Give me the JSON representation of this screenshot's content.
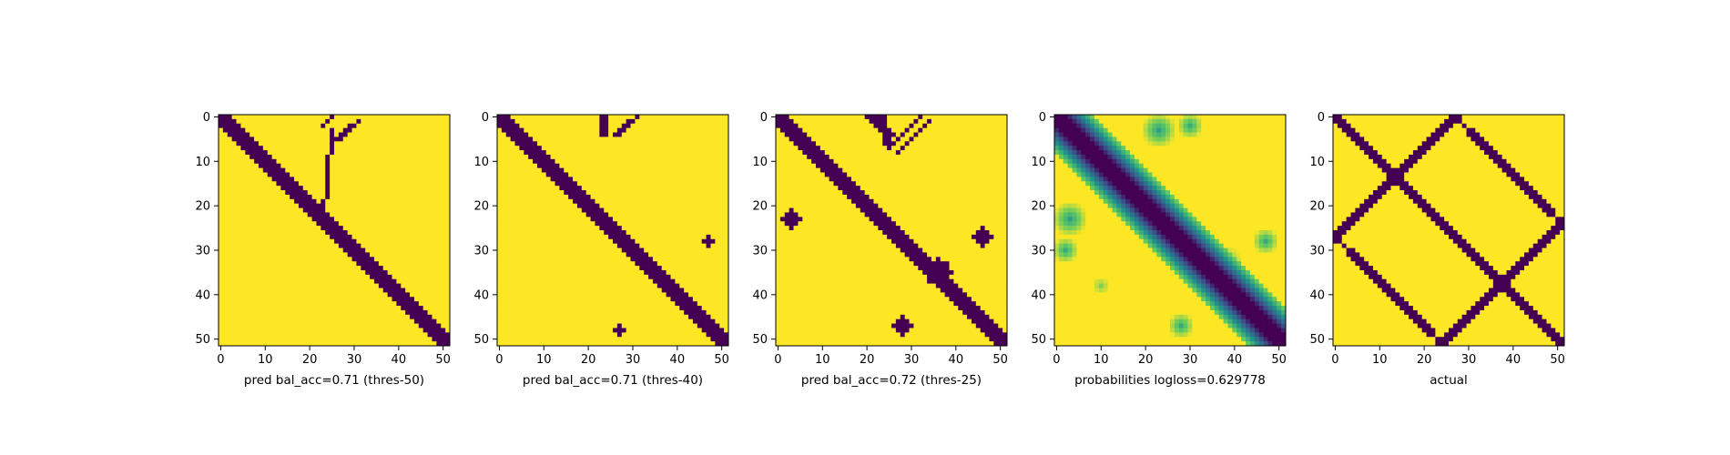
{
  "chart_data": [
    {
      "type": "heatmap",
      "title": "",
      "xlabel": "pred bal_acc=0.71 (thres-50)",
      "ylabel": "",
      "xlim": [
        0,
        52
      ],
      "ylim": [
        52,
        0
      ],
      "xticks": [
        0,
        10,
        20,
        30,
        40,
        50
      ],
      "yticks": [
        0,
        10,
        20,
        30,
        40,
        50
      ],
      "grid": false,
      "colormap": "viridis-binary",
      "background_value": 1,
      "description": "binary contact map; band along main diagonal (width ~3) plus small off-diagonal fragments",
      "bands": [
        {
          "from": [
            0,
            0
          ],
          "to": [
            51,
            51
          ],
          "width": 3
        },
        {
          "from": [
            23,
            2
          ],
          "to": [
            25,
            0
          ],
          "width": 1
        },
        {
          "from": [
            27,
            5
          ],
          "to": [
            31,
            1
          ],
          "width": 1
        },
        {
          "from": [
            23,
            24
          ],
          "to": [
            25,
            3
          ],
          "width": 1
        },
        {
          "from": [
            26,
            5
          ],
          "to": [
            31,
            1
          ],
          "width": 1
        }
      ],
      "blobs": []
    },
    {
      "type": "heatmap",
      "title": "",
      "xlabel": "pred bal_acc=0.71 (thres-40)",
      "ylabel": "",
      "xlim": [
        0,
        52
      ],
      "ylim": [
        52,
        0
      ],
      "xticks": [
        0,
        10,
        20,
        30,
        40,
        50
      ],
      "yticks": [
        0,
        10,
        20,
        30,
        40,
        50
      ],
      "grid": false,
      "colormap": "viridis-binary",
      "background_value": 1,
      "description": "binary contact map; diagonal band plus off-diagonal fragments",
      "bands": [
        {
          "from": [
            0,
            0
          ],
          "to": [
            51,
            51
          ],
          "width": 3
        },
        {
          "from": [
            23,
            0
          ],
          "to": [
            24,
            4
          ],
          "width": 1
        },
        {
          "from": [
            27,
            4
          ],
          "to": [
            31,
            0
          ],
          "width": 1
        },
        {
          "from": [
            23,
            4
          ],
          "to": [
            24,
            0
          ],
          "width": 1
        },
        {
          "from": [
            26,
            4
          ],
          "to": [
            31,
            0
          ],
          "width": 1
        }
      ],
      "blobs": [
        {
          "x": 27,
          "y": 48,
          "r": 1
        },
        {
          "x": 47,
          "y": 28,
          "r": 1
        }
      ]
    },
    {
      "type": "heatmap",
      "title": "",
      "xlabel": "pred bal_acc=0.72 (thres-25)",
      "ylabel": "",
      "xlim": [
        0,
        52
      ],
      "ylim": [
        52,
        0
      ],
      "xticks": [
        0,
        10,
        20,
        30,
        40,
        50
      ],
      "yticks": [
        0,
        10,
        20,
        30,
        40,
        50
      ],
      "grid": false,
      "colormap": "viridis-binary",
      "background_value": 1,
      "description": "binary contact map; wider diagonal band plus off-diagonal fragments",
      "bands": [
        {
          "from": [
            0,
            0
          ],
          "to": [
            51,
            51
          ],
          "width": 4
        },
        {
          "from": [
            23,
            0
          ],
          "to": [
            25,
            6
          ],
          "width": 2
        },
        {
          "from": [
            26,
            6
          ],
          "to": [
            32,
            0
          ],
          "width": 1
        },
        {
          "from": [
            21,
            0
          ],
          "to": [
            25,
            4
          ],
          "width": 2
        },
        {
          "from": [
            27,
            8
          ],
          "to": [
            34,
            1
          ],
          "width": 1
        }
      ],
      "blobs": [
        {
          "x": 28,
          "y": 47,
          "r": 2
        },
        {
          "x": 46,
          "y": 27,
          "r": 2
        },
        {
          "x": 36,
          "y": 35,
          "r": 3
        },
        {
          "x": 3,
          "y": 23,
          "r": 2
        }
      ]
    },
    {
      "type": "heatmap",
      "title": "",
      "xlabel": "probabilities logloss=0.629778",
      "ylabel": "",
      "xlim": [
        0,
        52
      ],
      "ylim": [
        52,
        0
      ],
      "xticks": [
        0,
        10,
        20,
        30,
        40,
        50
      ],
      "yticks": [
        0,
        10,
        20,
        30,
        40,
        50
      ],
      "grid": false,
      "colormap": "viridis",
      "background_value": 1,
      "description": "continuous probability map; dark diagonal band with blue-green halos and scattered green patches",
      "bands": [
        {
          "from": [
            0,
            0
          ],
          "to": [
            51,
            51
          ],
          "width": 3
        }
      ],
      "blobs": [
        {
          "x": 23,
          "y": 3,
          "r": 4,
          "v": 0.55
        },
        {
          "x": 3,
          "y": 23,
          "r": 4,
          "v": 0.55
        },
        {
          "x": 30,
          "y": 2,
          "r": 3,
          "v": 0.6
        },
        {
          "x": 2,
          "y": 30,
          "r": 3,
          "v": 0.6
        },
        {
          "x": 47,
          "y": 28,
          "r": 3,
          "v": 0.6
        },
        {
          "x": 28,
          "y": 47,
          "r": 3,
          "v": 0.6
        },
        {
          "x": 38,
          "y": 33,
          "r": 4,
          "v": 0.7
        },
        {
          "x": 10,
          "y": 38,
          "r": 2,
          "v": 0.8
        }
      ]
    },
    {
      "type": "heatmap",
      "title": "",
      "xlabel": "actual",
      "ylabel": "",
      "xlim": [
        0,
        52
      ],
      "ylim": [
        52,
        0
      ],
      "xticks": [
        0,
        10,
        20,
        30,
        40,
        50
      ],
      "yticks": [
        0,
        10,
        20,
        30,
        40,
        50
      ],
      "grid": false,
      "colormap": "viridis-binary",
      "background_value": 1,
      "description": "true contact map; X-shaped crossing bands forming a diamond/lattice pattern",
      "bands": [
        {
          "from": [
            0,
            0
          ],
          "to": [
            16,
            16
          ],
          "width": 2
        },
        {
          "from": [
            16,
            16
          ],
          "to": [
            51,
            51
          ],
          "width": 2
        },
        {
          "from": [
            27,
            0
          ],
          "to": [
            0,
            27
          ],
          "width": 2
        },
        {
          "from": [
            51,
            24
          ],
          "to": [
            24,
            51
          ],
          "width": 2
        },
        {
          "from": [
            31,
            4
          ],
          "to": [
            48,
            21
          ],
          "width": 2
        },
        {
          "from": [
            4,
            31
          ],
          "to": [
            21,
            48
          ],
          "width": 2
        },
        {
          "from": [
            27,
            0
          ],
          "to": [
            51,
            24
          ],
          "width": 1
        },
        {
          "from": [
            0,
            27
          ],
          "to": [
            24,
            51
          ],
          "width": 1
        }
      ],
      "blobs": []
    }
  ]
}
